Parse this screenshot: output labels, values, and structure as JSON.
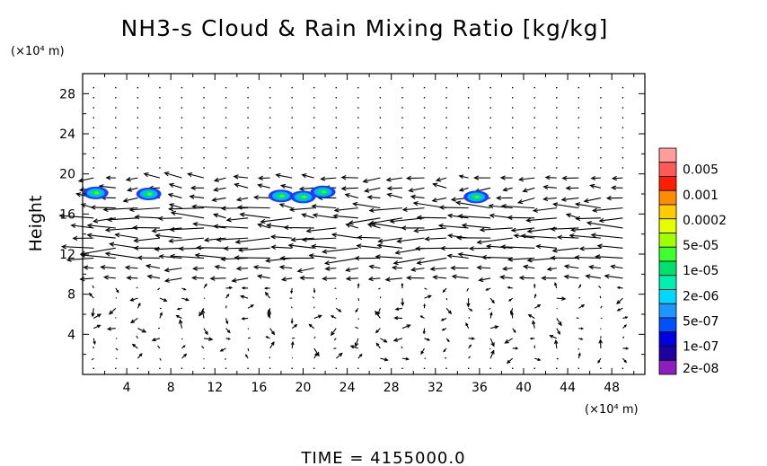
{
  "chart_data": {
    "type": "vector_field_contour",
    "title": "NH3-s Cloud & Rain Mixing Ratio [kg/kg]",
    "ylabel": "Height",
    "y_unit": "(×10⁴ m)",
    "x_unit": "(×10⁴ m)",
    "footer": "TIME = 4155000.0",
    "xlim": [
      0,
      51
    ],
    "ylim": [
      0,
      30
    ],
    "x_ticks": [
      4,
      8,
      12,
      16,
      20,
      24,
      28,
      32,
      36,
      40,
      44,
      48
    ],
    "y_ticks": [
      4,
      8,
      12,
      16,
      20,
      24,
      28
    ],
    "colorbar": {
      "labels": [
        "0.005",
        "0.001",
        "0.0002",
        "5e-05",
        "1e-05",
        "2e-06",
        "5e-07",
        "1e-07",
        "2e-08"
      ],
      "colors": [
        "#ff9c9c",
        "#ff5a5a",
        "#ff1e00",
        "#ff8c00",
        "#ffcc00",
        "#e6ff00",
        "#a0ff00",
        "#40ff30",
        "#00e070",
        "#00f0b0",
        "#00d8ff",
        "#1e96ff",
        "#0050ff",
        "#0000e0",
        "#1e00a0",
        "#8c1ebe"
      ]
    },
    "cloud_patches": [
      {
        "x": 1.2,
        "y": 18.1
      },
      {
        "x": 6.0,
        "y": 18.0
      },
      {
        "x": 18.0,
        "y": 17.8
      },
      {
        "x": 20.0,
        "y": 17.7
      },
      {
        "x": 21.8,
        "y": 18.2
      },
      {
        "x": 35.7,
        "y": 17.7
      }
    ]
  }
}
